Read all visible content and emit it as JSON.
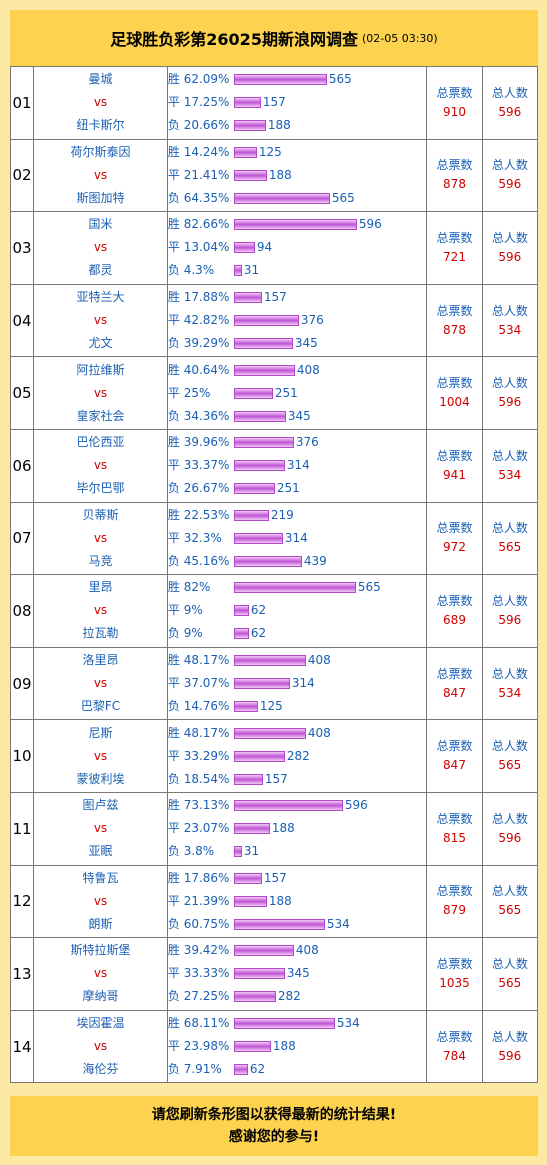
{
  "header": {
    "title": "足球胜负彩第26025期新浪网调查",
    "time": "(02-05 03:30)"
  },
  "stat_labels": {
    "total_votes": "总票数",
    "total_people": "总人数"
  },
  "matches": [
    {
      "no": "01",
      "home": "曼城",
      "vs": "vs",
      "away": "纽卡斯尔",
      "opts": [
        {
          "label": "胜 62.09%",
          "count": 565,
          "frac": 0.6209
        },
        {
          "label": "平 17.25%",
          "count": 157,
          "frac": 0.1725
        },
        {
          "label": "负 20.66%",
          "count": 188,
          "frac": 0.2066
        }
      ],
      "votes": 910,
      "people": 596
    },
    {
      "no": "02",
      "home": "荷尔斯泰因",
      "vs": "vs",
      "away": "斯图加特",
      "opts": [
        {
          "label": "胜 14.24%",
          "count": 125,
          "frac": 0.1424
        },
        {
          "label": "平 21.41%",
          "count": 188,
          "frac": 0.2141
        },
        {
          "label": "负 64.35%",
          "count": 565,
          "frac": 0.6435
        }
      ],
      "votes": 878,
      "people": 596
    },
    {
      "no": "03",
      "home": "国米",
      "vs": "vs",
      "away": "都灵",
      "opts": [
        {
          "label": "胜 82.66%",
          "count": 596,
          "frac": 0.8266
        },
        {
          "label": "平 13.04%",
          "count": 94,
          "frac": 0.1304
        },
        {
          "label": "负 4.3%",
          "count": 31,
          "frac": 0.043
        }
      ],
      "votes": 721,
      "people": 596
    },
    {
      "no": "04",
      "home": "亚特兰大",
      "vs": "vs",
      "away": "尤文",
      "opts": [
        {
          "label": "胜 17.88%",
          "count": 157,
          "frac": 0.1788
        },
        {
          "label": "平 42.82%",
          "count": 376,
          "frac": 0.4282
        },
        {
          "label": "负 39.29%",
          "count": 345,
          "frac": 0.3929
        }
      ],
      "votes": 878,
      "people": 534
    },
    {
      "no": "05",
      "home": "阿拉维斯",
      "vs": "vs",
      "away": "皇家社会",
      "opts": [
        {
          "label": "胜 40.64%",
          "count": 408,
          "frac": 0.4064
        },
        {
          "label": "平 25%",
          "count": 251,
          "frac": 0.25
        },
        {
          "label": "负 34.36%",
          "count": 345,
          "frac": 0.3436
        }
      ],
      "votes": 1004,
      "people": 596
    },
    {
      "no": "06",
      "home": "巴伦西亚",
      "vs": "vs",
      "away": "毕尔巴鄂",
      "opts": [
        {
          "label": "胜 39.96%",
          "count": 376,
          "frac": 0.3996
        },
        {
          "label": "平 33.37%",
          "count": 314,
          "frac": 0.3337
        },
        {
          "label": "负 26.67%",
          "count": 251,
          "frac": 0.2667
        }
      ],
      "votes": 941,
      "people": 534
    },
    {
      "no": "07",
      "home": "贝蒂斯",
      "vs": "vs",
      "away": "马竞",
      "opts": [
        {
          "label": "胜 22.53%",
          "count": 219,
          "frac": 0.2253
        },
        {
          "label": "平 32.3%",
          "count": 314,
          "frac": 0.323
        },
        {
          "label": "负 45.16%",
          "count": 439,
          "frac": 0.4516
        }
      ],
      "votes": 972,
      "people": 565
    },
    {
      "no": "08",
      "home": "里昂",
      "vs": "vs",
      "away": "拉瓦勒",
      "opts": [
        {
          "label": "胜 82%",
          "count": 565,
          "frac": 0.82
        },
        {
          "label": "平 9%",
          "count": 62,
          "frac": 0.09
        },
        {
          "label": "负 9%",
          "count": 62,
          "frac": 0.09
        }
      ],
      "votes": 689,
      "people": 596
    },
    {
      "no": "09",
      "home": "洛里昂",
      "vs": "vs",
      "away": "巴黎FC",
      "opts": [
        {
          "label": "胜 48.17%",
          "count": 408,
          "frac": 0.4817
        },
        {
          "label": "平 37.07%",
          "count": 314,
          "frac": 0.3707
        },
        {
          "label": "负 14.76%",
          "count": 125,
          "frac": 0.1476
        }
      ],
      "votes": 847,
      "people": 534
    },
    {
      "no": "10",
      "home": "尼斯",
      "vs": "vs",
      "away": "蒙彼利埃",
      "opts": [
        {
          "label": "胜 48.17%",
          "count": 408,
          "frac": 0.4817
        },
        {
          "label": "平 33.29%",
          "count": 282,
          "frac": 0.3329
        },
        {
          "label": "负 18.54%",
          "count": 157,
          "frac": 0.1854
        }
      ],
      "votes": 847,
      "people": 565
    },
    {
      "no": "11",
      "home": "图卢兹",
      "vs": "vs",
      "away": "亚眠",
      "opts": [
        {
          "label": "胜 73.13%",
          "count": 596,
          "frac": 0.7313
        },
        {
          "label": "平 23.07%",
          "count": 188,
          "frac": 0.2307
        },
        {
          "label": "负 3.8%",
          "count": 31,
          "frac": 0.038
        }
      ],
      "votes": 815,
      "people": 596
    },
    {
      "no": "12",
      "home": "特鲁瓦",
      "vs": "vs",
      "away": "朗斯",
      "opts": [
        {
          "label": "胜 17.86%",
          "count": 157,
          "frac": 0.1786
        },
        {
          "label": "平 21.39%",
          "count": 188,
          "frac": 0.2139
        },
        {
          "label": "负 60.75%",
          "count": 534,
          "frac": 0.6075
        }
      ],
      "votes": 879,
      "people": 565
    },
    {
      "no": "13",
      "home": "斯特拉斯堡",
      "vs": "vs",
      "away": "摩纳哥",
      "opts": [
        {
          "label": "胜 39.42%",
          "count": 408,
          "frac": 0.3942
        },
        {
          "label": "平 33.33%",
          "count": 345,
          "frac": 0.3333
        },
        {
          "label": "负 27.25%",
          "count": 282,
          "frac": 0.2725
        }
      ],
      "votes": 1035,
      "people": 565
    },
    {
      "no": "14",
      "home": "埃因霍温",
      "vs": "vs",
      "away": "海伦芬",
      "opts": [
        {
          "label": "胜 68.11%",
          "count": 534,
          "frac": 0.6811
        },
        {
          "label": "平 23.98%",
          "count": 188,
          "frac": 0.2398
        },
        {
          "label": "负 7.91%",
          "count": 62,
          "frac": 0.0791
        }
      ],
      "votes": 784,
      "people": 596
    }
  ],
  "footer": {
    "line1": "请您刷新条形图以获得最新的统计结果!",
    "line2": "感谢您的参与!"
  }
}
